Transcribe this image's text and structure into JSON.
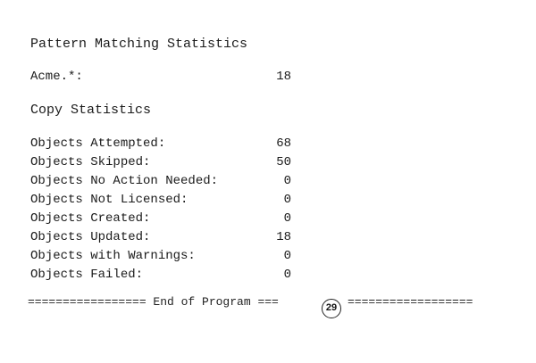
{
  "pattern_section": {
    "title": "Pattern Matching Statistics",
    "rows": [
      {
        "label": "Acme.*:",
        "value": "18"
      }
    ]
  },
  "copy_section": {
    "title": "Copy Statistics",
    "rows": [
      {
        "label": "Objects Attempted:",
        "value": "68"
      },
      {
        "label": "Objects Skipped:",
        "value": "50"
      },
      {
        "label": "Objects No Action Needed:",
        "value": "0"
      },
      {
        "label": "Objects Not Licensed:",
        "value": "0"
      },
      {
        "label": "Objects Created:",
        "value": "0"
      },
      {
        "label": "Objects Updated:",
        "value": "18"
      },
      {
        "label": "Objects with Warnings:",
        "value": "0"
      },
      {
        "label": "Objects Failed:",
        "value": "0"
      }
    ]
  },
  "footer": {
    "left_text": "================= End of Program ===",
    "right_text": "==================",
    "page_number": "29"
  }
}
